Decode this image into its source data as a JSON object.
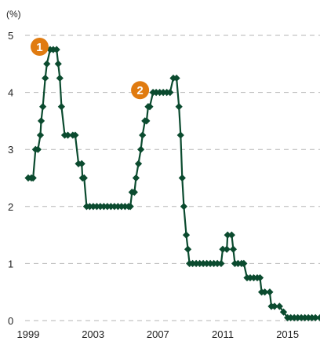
{
  "chart_data": {
    "type": "line",
    "unit_label": "(%)",
    "xlim": [
      1999,
      2017
    ],
    "ylim": [
      0,
      5
    ],
    "x_ticks": [
      "1999",
      "2003",
      "2007",
      "2011",
      "2015"
    ],
    "y_ticks": [
      "0",
      "1",
      "2",
      "3",
      "4",
      "5"
    ],
    "grid": "horizontal dashed",
    "colors": {
      "line": "#0b4b2f",
      "grid": "#b5b5b5",
      "badge": "#e07b10",
      "text": "#222222"
    },
    "annotations": [
      {
        "label": "1",
        "x": 1999.7,
        "y": 4.8
      },
      {
        "label": "2",
        "x": 2005.9,
        "y": 4.04
      }
    ],
    "series": [
      {
        "points": [
          [
            1999.0,
            2.5
          ],
          [
            1999.3,
            2.5
          ],
          [
            1999.45,
            3.0
          ],
          [
            1999.6,
            3.0
          ],
          [
            1999.75,
            3.25
          ],
          [
            1999.8,
            3.5
          ],
          [
            1999.9,
            3.75
          ],
          [
            2000.05,
            4.25
          ],
          [
            2000.15,
            4.5
          ],
          [
            2000.35,
            4.75
          ],
          [
            2000.75,
            4.75
          ],
          [
            2000.85,
            4.5
          ],
          [
            2000.95,
            4.25
          ],
          [
            2001.05,
            3.75
          ],
          [
            2001.25,
            3.25
          ],
          [
            2001.75,
            3.25
          ],
          [
            2001.9,
            3.25
          ],
          [
            2002.1,
            2.75
          ],
          [
            2002.3,
            2.75
          ],
          [
            2002.35,
            2.5
          ],
          [
            2002.45,
            2.5
          ],
          [
            2002.6,
            2.0
          ],
          [
            2005.3,
            2.0
          ],
          [
            2005.4,
            2.25
          ],
          [
            2005.55,
            2.25
          ],
          [
            2005.65,
            2.5
          ],
          [
            2005.8,
            2.75
          ],
          [
            2005.95,
            3.0
          ],
          [
            2006.05,
            3.25
          ],
          [
            2006.2,
            3.5
          ],
          [
            2006.3,
            3.5
          ],
          [
            2006.4,
            3.75
          ],
          [
            2006.5,
            3.75
          ],
          [
            2006.7,
            4.0
          ],
          [
            2007.75,
            4.0
          ],
          [
            2007.95,
            4.25
          ],
          [
            2008.15,
            4.25
          ],
          [
            2008.3,
            3.75
          ],
          [
            2008.4,
            3.25
          ],
          [
            2008.5,
            2.5
          ],
          [
            2008.6,
            2.0
          ],
          [
            2008.75,
            1.5
          ],
          [
            2008.85,
            1.25
          ],
          [
            2008.95,
            1.0
          ],
          [
            2010.9,
            1.0
          ],
          [
            2011.0,
            1.25
          ],
          [
            2011.25,
            1.25
          ],
          [
            2011.3,
            1.5
          ],
          [
            2011.55,
            1.5
          ],
          [
            2011.65,
            1.25
          ],
          [
            2011.75,
            1.0
          ],
          [
            2012.3,
            1.0
          ],
          [
            2012.5,
            0.75
          ],
          [
            2013.3,
            0.75
          ],
          [
            2013.4,
            0.5
          ],
          [
            2013.9,
            0.5
          ],
          [
            2014.0,
            0.25
          ],
          [
            2014.5,
            0.25
          ],
          [
            2014.75,
            0.15
          ],
          [
            2015.0,
            0.05
          ],
          [
            2017.0,
            0.05
          ]
        ]
      }
    ]
  }
}
